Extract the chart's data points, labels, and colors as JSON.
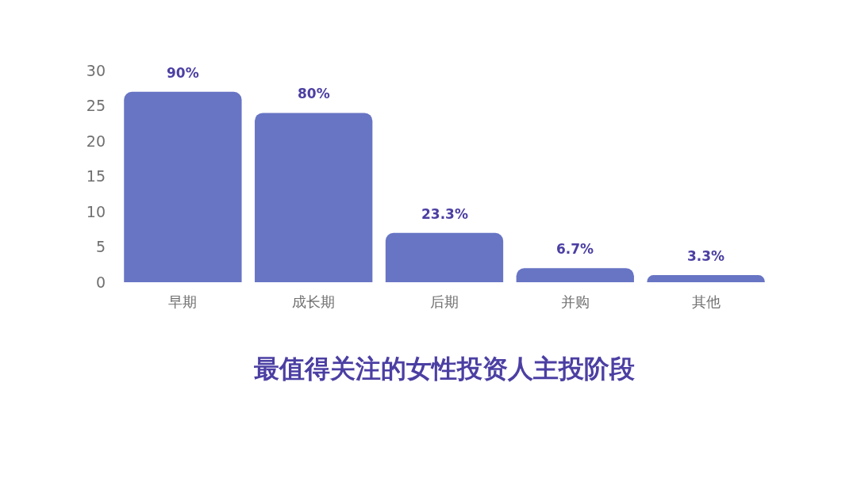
{
  "chart_data": {
    "type": "bar",
    "title": "最值得关注的女性投资人主投阶段",
    "categories": [
      "早期",
      "成长期",
      "后期",
      "并购",
      "其他"
    ],
    "values": [
      27,
      24,
      7,
      2,
      1
    ],
    "annotations": [
      {
        "text": "90%",
        "x": "早期",
        "y": 27
      },
      {
        "text": "80%",
        "x": "成长期",
        "y": 24
      },
      {
        "text": "23.3%",
        "x": "后期",
        "y": 7
      },
      {
        "text": "6.7%",
        "x": "并购",
        "y": 2
      },
      {
        "text": "3.3%",
        "x": "其他",
        "y": 1
      }
    ],
    "color": "#6875c4",
    "ylim": [
      0,
      30
    ],
    "yticks": [
      0,
      5,
      10,
      15,
      20,
      25,
      30
    ]
  }
}
